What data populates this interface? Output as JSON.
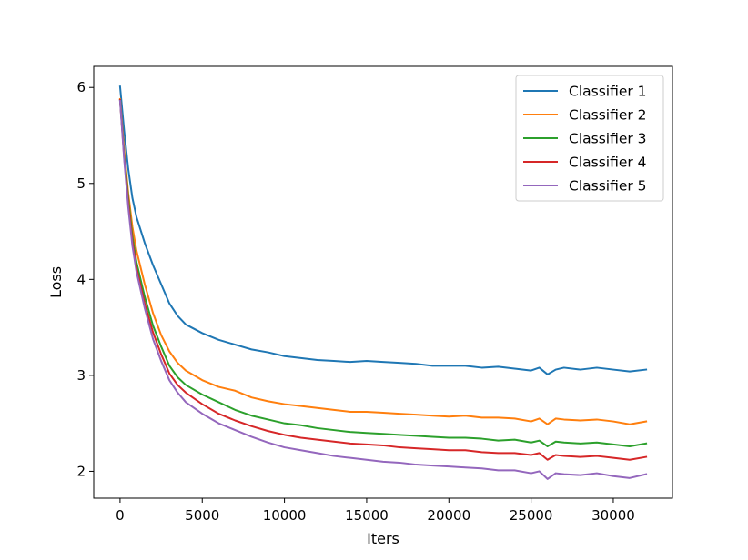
{
  "chart_data": {
    "type": "line",
    "title": "",
    "xlabel": "Iters",
    "ylabel": "Loss",
    "xlim": [
      -1600,
      33600
    ],
    "ylim": [
      1.72,
      6.22
    ],
    "xticks": [
      0,
      5000,
      10000,
      15000,
      20000,
      25000,
      30000
    ],
    "xtick_labels": [
      "0",
      "5000",
      "10000",
      "15000",
      "20000",
      "25000",
      "30000"
    ],
    "yticks": [
      2,
      3,
      4,
      5,
      6
    ],
    "ytick_labels": [
      "2",
      "3",
      "4",
      "5",
      "6"
    ],
    "grid": false,
    "legend": {
      "position": "top-right"
    },
    "series": [
      {
        "name": "Classifier 1",
        "color": "#1f77b4",
        "x": [
          0,
          250,
          500,
          750,
          1000,
          1500,
          2000,
          2500,
          3000,
          3500,
          4000,
          5000,
          6000,
          7000,
          8000,
          9000,
          10000,
          11000,
          12000,
          13000,
          14000,
          15000,
          16000,
          17000,
          18000,
          19000,
          20000,
          21000,
          22000,
          23000,
          24000,
          25000,
          25500,
          26000,
          26500,
          27000,
          28000,
          29000,
          30000,
          31000,
          32000
        ],
        "y": [
          6.01,
          5.55,
          5.15,
          4.85,
          4.65,
          4.38,
          4.15,
          3.95,
          3.75,
          3.62,
          3.53,
          3.44,
          3.37,
          3.32,
          3.27,
          3.24,
          3.2,
          3.18,
          3.16,
          3.15,
          3.14,
          3.15,
          3.14,
          3.13,
          3.12,
          3.1,
          3.1,
          3.1,
          3.08,
          3.09,
          3.07,
          3.05,
          3.08,
          3.01,
          3.06,
          3.08,
          3.06,
          3.08,
          3.06,
          3.04,
          3.06
        ]
      },
      {
        "name": "Classifier 2",
        "color": "#ff7f0e",
        "x": [
          0,
          250,
          500,
          750,
          1000,
          1500,
          2000,
          2500,
          3000,
          3500,
          4000,
          5000,
          6000,
          7000,
          8000,
          9000,
          10000,
          11000,
          12000,
          13000,
          14000,
          15000,
          16000,
          17000,
          18000,
          19000,
          20000,
          21000,
          22000,
          23000,
          24000,
          25000,
          25500,
          26000,
          26500,
          27000,
          28000,
          29000,
          30000,
          31000,
          32000
        ],
        "y": [
          5.88,
          5.35,
          4.9,
          4.55,
          4.3,
          3.95,
          3.65,
          3.42,
          3.25,
          3.13,
          3.05,
          2.95,
          2.88,
          2.84,
          2.77,
          2.73,
          2.7,
          2.68,
          2.66,
          2.64,
          2.62,
          2.62,
          2.61,
          2.6,
          2.59,
          2.58,
          2.57,
          2.58,
          2.56,
          2.56,
          2.55,
          2.52,
          2.55,
          2.49,
          2.55,
          2.54,
          2.53,
          2.54,
          2.52,
          2.49,
          2.52
        ]
      },
      {
        "name": "Classifier 3",
        "color": "#2ca02c",
        "x": [
          0,
          250,
          500,
          750,
          1000,
          1500,
          2000,
          2500,
          3000,
          3500,
          4000,
          5000,
          6000,
          7000,
          8000,
          9000,
          10000,
          11000,
          12000,
          13000,
          14000,
          15000,
          16000,
          17000,
          18000,
          19000,
          20000,
          21000,
          22000,
          23000,
          24000,
          25000,
          25500,
          26000,
          26500,
          27000,
          28000,
          29000,
          30000,
          31000,
          32000
        ],
        "y": [
          5.87,
          5.3,
          4.85,
          4.45,
          4.18,
          3.82,
          3.52,
          3.3,
          3.1,
          2.98,
          2.9,
          2.8,
          2.72,
          2.64,
          2.58,
          2.54,
          2.5,
          2.48,
          2.45,
          2.43,
          2.41,
          2.4,
          2.39,
          2.38,
          2.37,
          2.36,
          2.35,
          2.35,
          2.34,
          2.32,
          2.33,
          2.3,
          2.32,
          2.26,
          2.31,
          2.3,
          2.29,
          2.3,
          2.28,
          2.26,
          2.29
        ]
      },
      {
        "name": "Classifier 4",
        "color": "#d62728",
        "x": [
          0,
          250,
          500,
          750,
          1000,
          1500,
          2000,
          2500,
          3000,
          3500,
          4000,
          5000,
          6000,
          7000,
          8000,
          9000,
          10000,
          11000,
          12000,
          13000,
          14000,
          15000,
          16000,
          17000,
          18000,
          19000,
          20000,
          21000,
          22000,
          23000,
          24000,
          25000,
          25500,
          26000,
          26500,
          27000,
          28000,
          29000,
          30000,
          31000,
          32000
        ],
        "y": [
          5.87,
          5.27,
          4.8,
          4.4,
          4.12,
          3.75,
          3.45,
          3.22,
          3.02,
          2.9,
          2.82,
          2.7,
          2.6,
          2.53,
          2.47,
          2.42,
          2.38,
          2.35,
          2.33,
          2.31,
          2.29,
          2.28,
          2.27,
          2.25,
          2.24,
          2.23,
          2.22,
          2.22,
          2.2,
          2.19,
          2.19,
          2.17,
          2.19,
          2.12,
          2.17,
          2.16,
          2.15,
          2.16,
          2.14,
          2.12,
          2.15
        ]
      },
      {
        "name": "Classifier 5",
        "color": "#9467bd",
        "x": [
          0,
          250,
          500,
          750,
          1000,
          1500,
          2000,
          2500,
          3000,
          3500,
          4000,
          5000,
          6000,
          7000,
          8000,
          9000,
          10000,
          11000,
          12000,
          13000,
          14000,
          15000,
          16000,
          17000,
          18000,
          19000,
          20000,
          21000,
          22000,
          23000,
          24000,
          25000,
          25500,
          26000,
          26500,
          27000,
          28000,
          29000,
          30000,
          31000,
          32000
        ],
        "y": [
          5.86,
          5.25,
          4.75,
          4.35,
          4.08,
          3.7,
          3.38,
          3.15,
          2.95,
          2.82,
          2.72,
          2.6,
          2.5,
          2.43,
          2.36,
          2.3,
          2.25,
          2.22,
          2.19,
          2.16,
          2.14,
          2.12,
          2.1,
          2.09,
          2.07,
          2.06,
          2.05,
          2.04,
          2.03,
          2.01,
          2.01,
          1.98,
          2.0,
          1.92,
          1.98,
          1.97,
          1.96,
          1.98,
          1.95,
          1.93,
          1.97
        ]
      }
    ]
  }
}
